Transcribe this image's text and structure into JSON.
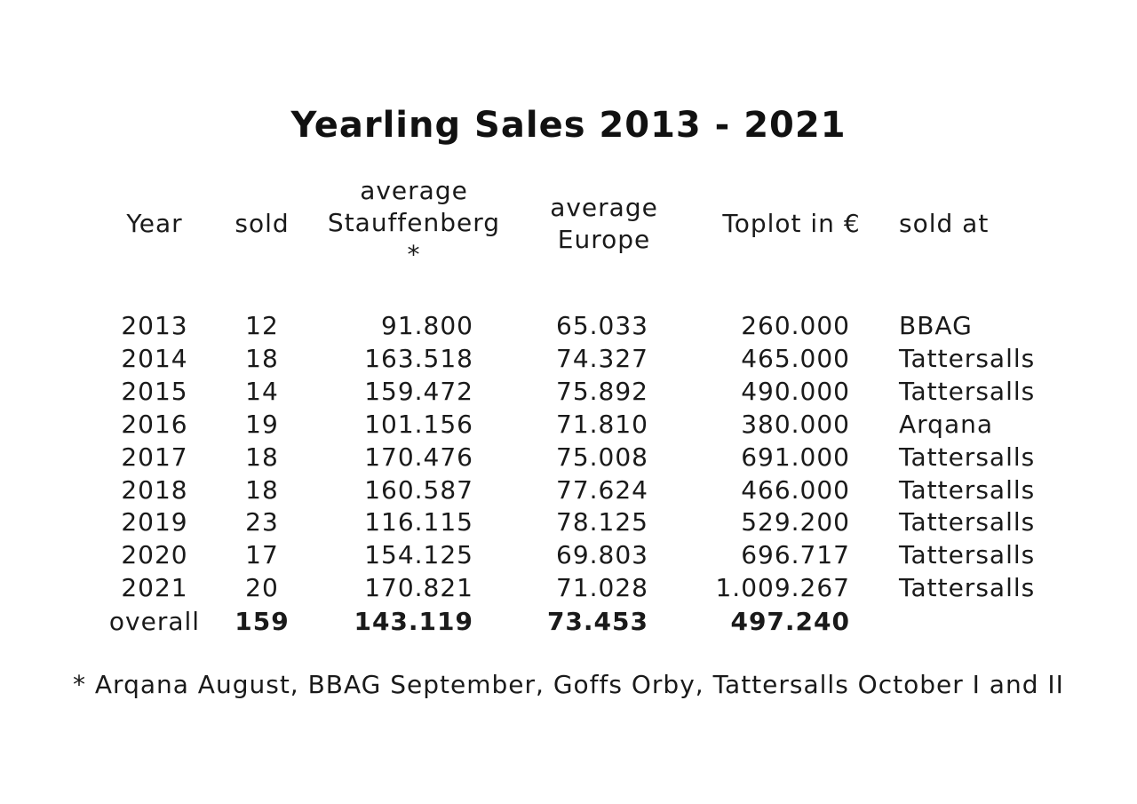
{
  "title": "Yearling Sales 2013 - 2021",
  "headers": {
    "year": "Year",
    "sold": "sold",
    "stauffenberg": [
      "average",
      "Stauffenberg",
      "*"
    ],
    "europe": [
      "average",
      "Europe"
    ],
    "toplot": "Toplot in €",
    "sold_at": "sold at"
  },
  "rows": [
    {
      "year": "2013",
      "sold": "12",
      "stauffenberg": "91.800",
      "europe": "65.033",
      "toplot": "260.000",
      "sold_at": "BBAG"
    },
    {
      "year": "2014",
      "sold": "18",
      "stauffenberg": "163.518",
      "europe": "74.327",
      "toplot": "465.000",
      "sold_at": "Tattersalls"
    },
    {
      "year": "2015",
      "sold": "14",
      "stauffenberg": "159.472",
      "europe": "75.892",
      "toplot": "490.000",
      "sold_at": "Tattersalls"
    },
    {
      "year": "2016",
      "sold": "19",
      "stauffenberg": "101.156",
      "europe": "71.810",
      "toplot": "380.000",
      "sold_at": "Arqana"
    },
    {
      "year": "2017",
      "sold": "18",
      "stauffenberg": "170.476",
      "europe": "75.008",
      "toplot": "691.000",
      "sold_at": "Tattersalls"
    },
    {
      "year": "2018",
      "sold": "18",
      "stauffenberg": "160.587",
      "europe": "77.624",
      "toplot": "466.000",
      "sold_at": "Tattersalls"
    },
    {
      "year": "2019",
      "sold": "23",
      "stauffenberg": "116.115",
      "europe": "78.125",
      "toplot": "529.200",
      "sold_at": "Tattersalls"
    },
    {
      "year": "2020",
      "sold": "17",
      "stauffenberg": "154.125",
      "europe": "69.803",
      "toplot": "696.717",
      "sold_at": "Tattersalls"
    },
    {
      "year": "2021",
      "sold": "20",
      "stauffenberg": "170.821",
      "europe": "71.028",
      "toplot": "1.009.267",
      "sold_at": "Tattersalls"
    }
  ],
  "overall": {
    "label": "overall",
    "sold": "159",
    "stauffenberg": "143.119",
    "europe": "73.453",
    "toplot": "497.240"
  },
  "footnote": "* Arqana August, BBAG September, Goffs Orby, Tattersalls October I and II"
}
